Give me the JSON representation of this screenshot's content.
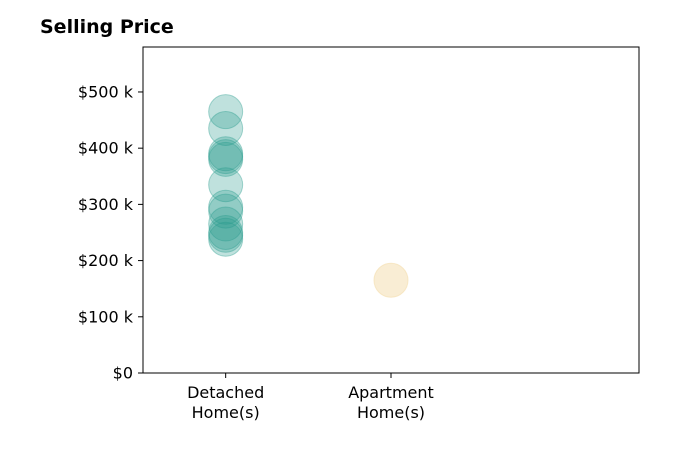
{
  "chart_data": {
    "type": "scatter",
    "title": "Selling Price",
    "xlabel": "",
    "ylabel": "",
    "categories": [
      [
        "Detached",
        "Home(s)"
      ],
      [
        "Apartment",
        "Home(s)"
      ]
    ],
    "xlim": [
      -0.5,
      2.5
    ],
    "ylim": [
      0,
      580000
    ],
    "yticks": [
      0,
      100000,
      200000,
      300000,
      400000,
      500000
    ],
    "ytick_labels": [
      "$0",
      "$100 k",
      "$200 k",
      "$300 k",
      "$400 k",
      "$500 k"
    ],
    "grid": false,
    "series": [
      {
        "category_index": 0,
        "color": "#2a9d8f",
        "opacity": 0.3,
        "values": [
          465000,
          435000,
          390000,
          385000,
          380000,
          335000,
          295000,
          288000,
          265000,
          250000,
          245000,
          238000
        ]
      },
      {
        "category_index": 1,
        "color": "#f4dfb0",
        "opacity": 0.55,
        "values": [
          165000
        ]
      }
    ]
  }
}
